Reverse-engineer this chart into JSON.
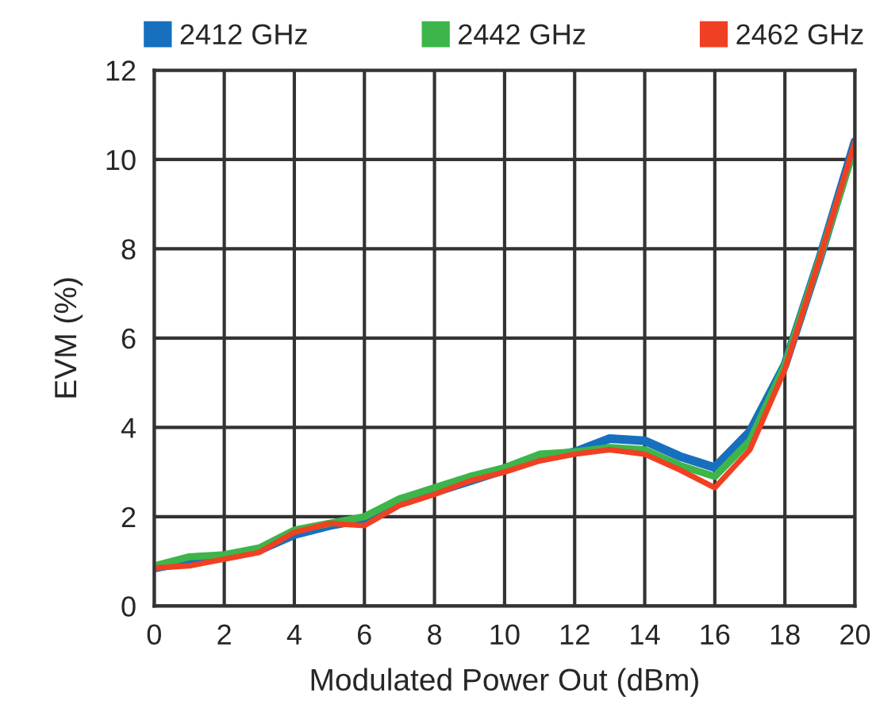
{
  "chart_data": {
    "type": "line",
    "xlabel": "Modulated Power Out (dBm)",
    "ylabel": "EVM (%)",
    "x": [
      0,
      1,
      2,
      3,
      4,
      5,
      6,
      7,
      8,
      9,
      10,
      11,
      12,
      13,
      14,
      15,
      16,
      17,
      18,
      19,
      20
    ],
    "series": [
      {
        "name": "2412 GHz",
        "color": "#1670be",
        "values": [
          0.85,
          1.0,
          1.1,
          1.25,
          1.6,
          1.8,
          1.95,
          2.3,
          2.55,
          2.8,
          3.05,
          3.3,
          3.45,
          3.75,
          3.7,
          3.35,
          3.1,
          3.9,
          5.4,
          7.8,
          10.4
        ]
      },
      {
        "name": "2442 GHz",
        "color": "#3db54a",
        "values": [
          0.9,
          1.1,
          1.15,
          1.3,
          1.7,
          1.85,
          2.0,
          2.4,
          2.65,
          2.9,
          3.1,
          3.4,
          3.45,
          3.55,
          3.5,
          3.15,
          2.9,
          3.7,
          5.4,
          7.8,
          10.3
        ]
      },
      {
        "name": "2462 GHz",
        "color": "#f04023",
        "values": [
          0.85,
          0.9,
          1.05,
          1.2,
          1.65,
          1.85,
          1.8,
          2.25,
          2.5,
          2.8,
          3.0,
          3.25,
          3.4,
          3.5,
          3.4,
          3.05,
          2.65,
          3.5,
          5.3,
          7.8,
          10.4
        ]
      }
    ],
    "xlim": [
      0,
      20
    ],
    "xticks": [
      0,
      2,
      4,
      6,
      8,
      10,
      12,
      14,
      16,
      18,
      20
    ],
    "ylim": [
      0,
      12
    ],
    "yticks": [
      0,
      2,
      4,
      6,
      8,
      10,
      12
    ],
    "grid": true,
    "legend": "top",
    "line_style": "solid"
  }
}
